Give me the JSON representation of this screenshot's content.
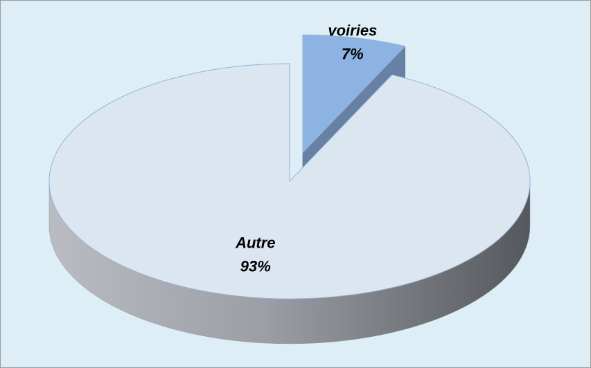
{
  "chart_data": {
    "type": "pie",
    "categories": [
      "voiries",
      "Autre"
    ],
    "values": [
      7,
      93
    ],
    "value_labels": [
      "7%",
      "93%"
    ],
    "colors": [
      "#8db3e2",
      "#dce6f0"
    ],
    "explode": [
      true,
      false
    ]
  }
}
